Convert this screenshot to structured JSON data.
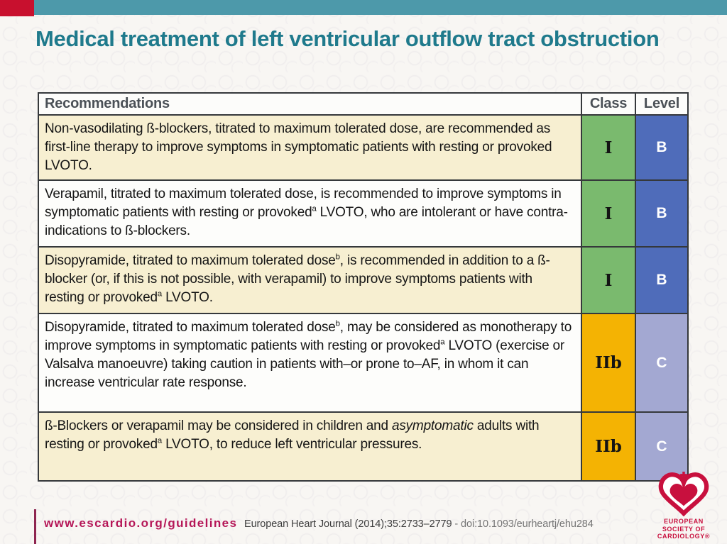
{
  "title": "Medical treatment of left ventricular outflow tract obstruction",
  "table": {
    "headers": {
      "recommendations": "Recommendations",
      "class": "Class",
      "level": "Level"
    },
    "rows": [
      {
        "segments": [
          {
            "t": "Non-vasodilating ß-blockers, titrated to maximum tolerated dose, are recommended as first-line therapy to improve symptoms in symptomatic patients with resting or provoked LVOTO."
          }
        ],
        "class": "I",
        "level": "B",
        "row_bg": "#f7efd1",
        "class_bg": "#7aba6e",
        "level_bg": "#4f6cba"
      },
      {
        "segments": [
          {
            "t": "Verapamil, titrated to maximum tolerated dose, is recommended to improve symptoms in symptomatic patients with resting or provoked"
          },
          {
            "t": "a",
            "sup": true
          },
          {
            "t": " LVOTO, who are intolerant or have contra-indications to ß-blockers."
          }
        ],
        "class": "I",
        "level": "B",
        "row_bg": "#fdfdfb",
        "class_bg": "#7aba6e",
        "level_bg": "#4f6cba"
      },
      {
        "segments": [
          {
            "t": "Disopyramide, titrated to maximum tolerated dose"
          },
          {
            "t": "b",
            "sup": true
          },
          {
            "t": ", is recommended in addition to a ß-blocker (or, if this is not possible, with verapamil) to improve symptoms patients with resting or provoked"
          },
          {
            "t": "a",
            "sup": true
          },
          {
            "t": " LVOTO."
          }
        ],
        "class": "I",
        "level": "B",
        "row_bg": "#f7efd1",
        "class_bg": "#7aba6e",
        "level_bg": "#4f6cba"
      },
      {
        "segments": [
          {
            "t": "Disopyramide, titrated to maximum tolerated dose"
          },
          {
            "t": "b",
            "sup": true
          },
          {
            "t": ", may be considered as monotherapy to improve symptoms in symptomatic patients with resting or provoked"
          },
          {
            "t": "a",
            "sup": true
          },
          {
            "t": " LVOTO (exercise or Valsalva manoeuvre) taking caution in patients with–or prone to–AF, in whom it can increase ventricular rate response."
          }
        ],
        "class": "IIb",
        "level": "C",
        "row_bg": "#fdfdfb",
        "class_bg": "#f4b303",
        "level_bg": "#a3a8d2"
      },
      {
        "segments": [
          {
            "t": "ß-Blockers or verapamil may be considered in children and "
          },
          {
            "t": "asymptomatic",
            "i": true
          },
          {
            "t": " adults with resting or provoked"
          },
          {
            "t": "a",
            "sup": true
          },
          {
            "t": " LVOTO, to reduce left ventricular pressures."
          }
        ],
        "class": "IIb",
        "level": "C",
        "row_bg": "#f7efd1",
        "class_bg": "#f4b303",
        "level_bg": "#a3a8d2"
      }
    ]
  },
  "footer": {
    "url": "www.escardio.org/guidelines",
    "citation_main": "European Heart Journal (2014);35:2733–2779",
    "citation_doi": " - doi:10.1093/eurheartj/ehu284",
    "logo_line1": "EUROPEAN",
    "logo_line2": "SOCIETY OF",
    "logo_line3": "CARDIOLOGY®"
  },
  "colors": {
    "bg": "#f8f6f3",
    "teal_bar": "#4d99aa",
    "red_accent": "#c8102e",
    "title_color": "#1f7a8c",
    "table_border": "#35383b",
    "header_fg": "#4a5056",
    "badge_dark_text": "#141414",
    "badge_light_text": "#ffffff",
    "footer_line": "#8e2550",
    "link_color": "#b51657",
    "cite_main": "#3d3d3d",
    "cite_doi": "#757575",
    "logo_red": "#c8103e"
  }
}
